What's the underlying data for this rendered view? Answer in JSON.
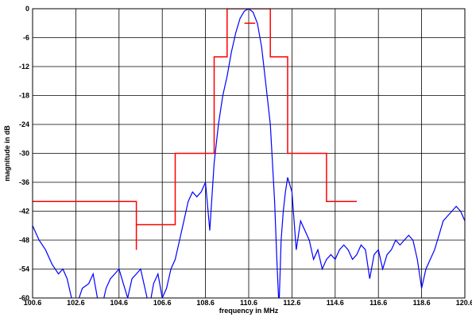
{
  "chart_data": {
    "type": "line",
    "title": "",
    "xlabel": "frequency in MHz",
    "ylabel": "magnitude in dB",
    "xlim": [
      100.6,
      120.6
    ],
    "ylim": [
      -60,
      0
    ],
    "xticks": [
      "100.6",
      "102.6",
      "104.6",
      "106.6",
      "108.6",
      "110.6",
      "112.6",
      "114.6",
      "116.6",
      "118.6",
      "120.6"
    ],
    "yticks": [
      "0",
      "-6",
      "-12",
      "-18",
      "-24",
      "-30",
      "-36",
      "-42",
      "-48",
      "-54",
      "-60"
    ],
    "grid": true,
    "colors": {
      "mask": "#ff0000",
      "response": "#0000ff",
      "grid": "#000000"
    },
    "series": [
      {
        "role": "mask",
        "x": [
          100.6,
          105.4,
          105.4,
          105.4,
          105.4,
          107.2,
          107.2,
          109.0,
          109.0,
          109.6,
          109.6,
          111.6,
          111.6,
          112.4,
          112.4,
          114.2,
          114.2,
          115.6
        ],
        "y": [
          -40,
          -40,
          -50,
          -44.8,
          -44.8,
          -44.8,
          -30,
          -30,
          -10,
          -10,
          0,
          0,
          -10,
          -10,
          -30,
          -30,
          -40,
          -40
        ]
      },
      {
        "role": "mask-marker",
        "x": [
          110.4,
          110.9
        ],
        "y": [
          -3,
          -3
        ]
      },
      {
        "role": "response",
        "x": [
          100.6,
          100.9,
          101.2,
          101.5,
          101.8,
          102.0,
          102.2,
          102.4,
          102.6,
          102.9,
          103.2,
          103.4,
          103.6,
          103.8,
          104.0,
          104.2,
          104.4,
          104.6,
          104.8,
          105.0,
          105.2,
          105.4,
          105.6,
          105.8,
          106.0,
          106.2,
          106.4,
          106.6,
          106.8,
          107.0,
          107.2,
          107.4,
          107.6,
          107.8,
          108.0,
          108.2,
          108.4,
          108.6,
          108.8,
          109.0,
          109.2,
          109.4,
          109.6,
          109.8,
          110.0,
          110.2,
          110.4,
          110.6,
          110.8,
          111.0,
          111.2,
          111.4,
          111.6,
          111.8,
          111.9,
          112.0,
          112.1,
          112.2,
          112.3,
          112.4,
          112.6,
          112.8,
          113.0,
          113.2,
          113.4,
          113.6,
          113.8,
          114.0,
          114.2,
          114.4,
          114.6,
          114.8,
          115.0,
          115.2,
          115.4,
          115.6,
          115.8,
          116.0,
          116.2,
          116.4,
          116.6,
          116.8,
          117.0,
          117.2,
          117.4,
          117.6,
          117.8,
          118.0,
          118.2,
          118.4,
          118.6,
          118.8,
          119.0,
          119.2,
          119.4,
          119.6,
          119.8,
          120.0,
          120.2,
          120.4,
          120.6
        ],
        "y": [
          -45,
          -48,
          -50,
          -53,
          -55,
          -54,
          -56,
          -60,
          -62,
          -58,
          -57,
          -55,
          -60,
          -62,
          -58,
          -56,
          -55,
          -54,
          -57,
          -60,
          -56,
          -55,
          -54,
          -58,
          -62,
          -57,
          -55,
          -60,
          -58,
          -54,
          -52,
          -48,
          -44,
          -40,
          -38,
          -39,
          -38,
          -36,
          -46,
          -32,
          -24,
          -18,
          -14,
          -9,
          -5,
          -2,
          -0.5,
          0,
          -0.7,
          -3,
          -8,
          -16,
          -24,
          -40,
          -52,
          -62,
          -48,
          -42,
          -38,
          -35,
          -38,
          -50,
          -44,
          -46,
          -48,
          -52,
          -50,
          -54,
          -52,
          -51,
          -52,
          -50,
          -49,
          -50,
          -52,
          -51,
          -49,
          -50,
          -56,
          -51,
          -50,
          -54,
          -51,
          -50,
          -48,
          -49,
          -48,
          -47,
          -48,
          -52,
          -58,
          -54,
          -52,
          -50,
          -47,
          -44,
          -43,
          -42,
          -41,
          -42,
          -44
        ]
      }
    ]
  }
}
